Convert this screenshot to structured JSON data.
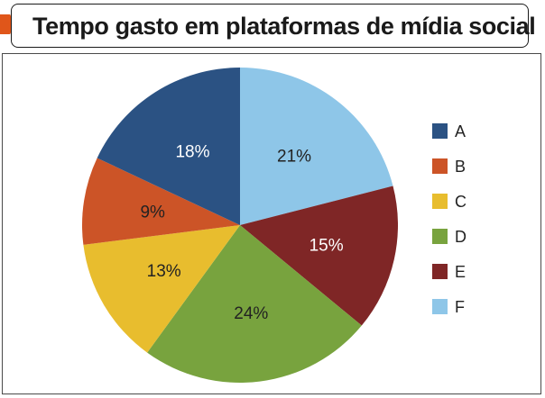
{
  "chart_data": {
    "type": "pie",
    "title": "Tempo gasto em plataformas de mídia social",
    "categories": [
      "A",
      "B",
      "C",
      "D",
      "E",
      "F"
    ],
    "values": [
      18,
      9,
      13,
      24,
      15,
      21
    ],
    "labels": [
      "18%",
      "9%",
      "13%",
      "24%",
      "15%",
      "21%"
    ],
    "colors": [
      "#2b5283",
      "#cc5427",
      "#e8bd2e",
      "#78a33e",
      "#7f2626",
      "#8ec6e8"
    ],
    "label_colors": [
      "#ffffff",
      "#222222",
      "#222222",
      "#222222",
      "#ffffff",
      "#222222"
    ],
    "legend_position": "right"
  },
  "accent_color": "#e0561a"
}
